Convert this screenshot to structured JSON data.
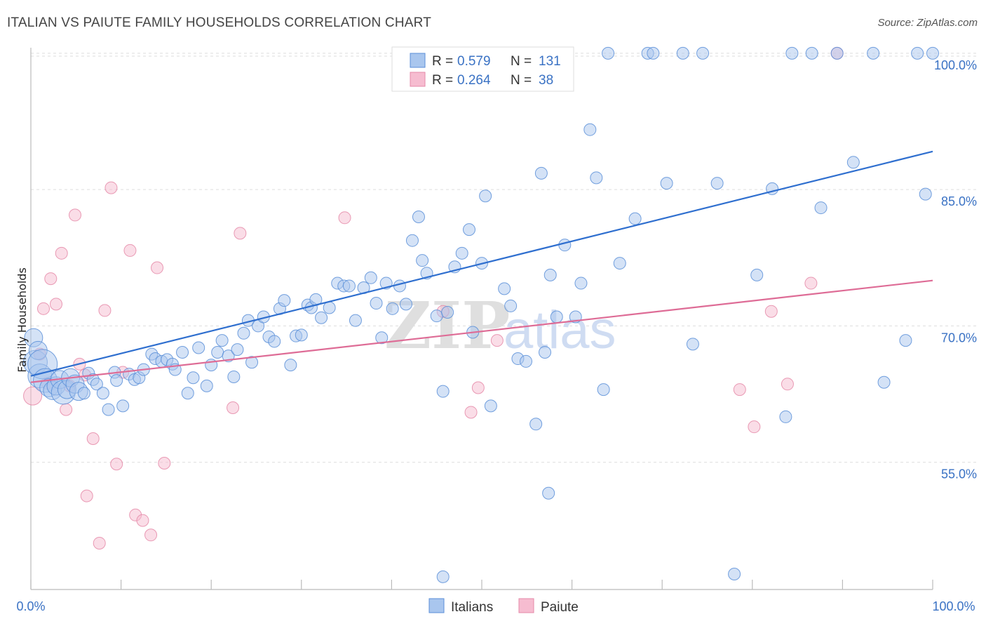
{
  "title": "ITALIAN VS PAIUTE FAMILY HOUSEHOLDS CORRELATION CHART",
  "source": "Source: ZipAtlas.com",
  "colors": {
    "blue_fill": "#a9c6ee",
    "blue_stroke": "#5b8fd8",
    "blue_line": "#2f6fcf",
    "pink_fill": "#f6bcd0",
    "pink_stroke": "#e58aa8",
    "pink_line": "#de6c96",
    "tick_text": "#3a72c4",
    "grid": "#dddddd"
  },
  "legend": {
    "r_label": "R =",
    "n_label": "N =",
    "rows": [
      {
        "r": "0.579",
        "n": "131"
      },
      {
        "r": "0.264",
        "n": "38"
      }
    ]
  },
  "watermark": {
    "zip": "ZIP",
    "atlas": "atlas"
  },
  "chart_data": {
    "type": "scatter",
    "title": "ITALIAN VS PAIUTE FAMILY HOUSEHOLDS CORRELATION CHART",
    "xlabel": "",
    "ylabel": "Family Households",
    "xlim": [
      0,
      100
    ],
    "ylim": [
      41,
      102
    ],
    "x_tick_labels": [
      "0.0%",
      "100.0%"
    ],
    "y_ticks": [
      {
        "value": 100,
        "label": "100.0%"
      },
      {
        "value": 85,
        "label": "85.0%"
      },
      {
        "value": 70,
        "label": "70.0%"
      },
      {
        "value": 55,
        "label": "55.0%"
      }
    ],
    "grid": true,
    "legend_position": "top-center",
    "series": [
      {
        "name": "Italians",
        "r": 0.579,
        "n": 131,
        "trend": {
          "x": [
            0,
            100
          ],
          "y": [
            64.5,
            89.2
          ]
        },
        "points": [
          [
            0.3,
            68.7,
            2
          ],
          [
            0.5,
            66.0,
            3
          ],
          [
            0.8,
            67.3,
            2
          ],
          [
            1.0,
            64.5,
            3
          ],
          [
            1.3,
            65.8,
            4
          ],
          [
            1.6,
            64.0,
            3
          ],
          [
            2.0,
            63.2,
            2
          ],
          [
            2.4,
            62.9,
            2
          ],
          [
            2.8,
            63.4,
            2
          ],
          [
            3.2,
            64.1,
            2
          ],
          [
            3.6,
            62.7,
            3
          ],
          [
            4.0,
            63.0,
            2
          ],
          [
            4.4,
            64.3,
            2
          ],
          [
            4.9,
            63.6,
            2
          ],
          [
            5.3,
            62.8,
            2
          ],
          [
            5.9,
            62.6,
            1
          ],
          [
            6.4,
            64.8,
            1
          ],
          [
            6.9,
            64.1,
            1
          ],
          [
            7.3,
            63.6,
            1
          ],
          [
            8.0,
            62.6,
            1
          ],
          [
            8.6,
            60.8,
            1
          ],
          [
            9.3,
            64.9,
            1
          ],
          [
            9.5,
            64.0,
            1
          ],
          [
            10.2,
            61.2,
            1
          ],
          [
            10.9,
            64.7,
            1
          ],
          [
            11.5,
            64.1,
            1
          ],
          [
            12.0,
            64.3,
            1
          ],
          [
            12.5,
            65.2,
            1
          ],
          [
            13.4,
            66.9,
            1
          ],
          [
            13.8,
            66.4,
            1
          ],
          [
            14.5,
            66.1,
            1
          ],
          [
            15.1,
            66.3,
            1
          ],
          [
            15.7,
            65.8,
            1
          ],
          [
            16.0,
            65.2,
            1
          ],
          [
            16.8,
            67.1,
            1
          ],
          [
            17.4,
            62.6,
            1
          ],
          [
            18.0,
            64.3,
            1
          ],
          [
            18.6,
            67.6,
            1
          ],
          [
            19.5,
            63.4,
            1
          ],
          [
            20.0,
            65.7,
            1
          ],
          [
            20.7,
            67.1,
            1
          ],
          [
            21.2,
            68.4,
            1
          ],
          [
            21.9,
            66.7,
            1
          ],
          [
            22.5,
            64.4,
            1
          ],
          [
            22.9,
            67.4,
            1
          ],
          [
            23.6,
            69.2,
            1
          ],
          [
            24.1,
            70.6,
            1
          ],
          [
            24.5,
            66.0,
            1
          ],
          [
            25.2,
            70.0,
            1
          ],
          [
            25.8,
            71.0,
            1
          ],
          [
            26.4,
            68.8,
            1
          ],
          [
            27.0,
            68.3,
            1
          ],
          [
            27.6,
            71.9,
            1
          ],
          [
            28.1,
            72.8,
            1
          ],
          [
            28.8,
            65.7,
            1
          ],
          [
            29.4,
            68.9,
            1
          ],
          [
            30.0,
            69.0,
            1
          ],
          [
            30.7,
            72.3,
            1
          ],
          [
            31.1,
            72.0,
            1
          ],
          [
            31.6,
            72.9,
            1
          ],
          [
            32.2,
            70.9,
            1
          ],
          [
            33.1,
            72.0,
            1
          ],
          [
            34.0,
            74.7,
            1
          ],
          [
            34.7,
            74.4,
            1
          ],
          [
            35.3,
            74.4,
            1
          ],
          [
            36.0,
            70.6,
            1
          ],
          [
            36.9,
            74.2,
            1
          ],
          [
            37.7,
            75.3,
            1
          ],
          [
            38.3,
            72.5,
            1
          ],
          [
            38.9,
            68.7,
            1
          ],
          [
            39.4,
            74.7,
            1
          ],
          [
            40.1,
            71.9,
            1
          ],
          [
            40.9,
            74.4,
            1
          ],
          [
            41.6,
            72.4,
            1
          ],
          [
            42.3,
            79.4,
            1
          ],
          [
            43.0,
            82.0,
            1
          ],
          [
            43.4,
            77.2,
            1
          ],
          [
            43.9,
            75.8,
            1
          ],
          [
            45.0,
            71.1,
            1
          ],
          [
            45.7,
            62.8,
            1
          ],
          [
            46.2,
            71.5,
            1
          ],
          [
            47.0,
            76.5,
            1
          ],
          [
            47.8,
            78.0,
            1
          ],
          [
            48.6,
            80.6,
            1
          ],
          [
            49.0,
            69.3,
            1
          ],
          [
            50.0,
            76.9,
            1
          ],
          [
            50.4,
            84.3,
            1
          ],
          [
            51.0,
            61.2,
            1
          ],
          [
            52.5,
            74.1,
            1
          ],
          [
            53.2,
            72.2,
            1
          ],
          [
            54.0,
            66.4,
            1
          ],
          [
            54.9,
            66.1,
            1
          ],
          [
            56.0,
            59.2,
            1
          ],
          [
            56.6,
            86.8,
            1
          ],
          [
            57.0,
            67.1,
            1
          ],
          [
            57.6,
            75.6,
            1
          ],
          [
            58.3,
            71.0,
            1
          ],
          [
            59.2,
            78.9,
            1
          ],
          [
            60.4,
            71.0,
            1
          ],
          [
            61.0,
            74.7,
            1
          ],
          [
            62.0,
            91.6,
            1
          ],
          [
            62.7,
            86.3,
            1
          ],
          [
            63.5,
            63.0,
            1
          ],
          [
            64.0,
            100.0,
            1
          ],
          [
            65.3,
            76.9,
            1
          ],
          [
            67.0,
            81.8,
            1
          ],
          [
            68.4,
            100.0,
            1
          ],
          [
            69.0,
            100.0,
            1
          ],
          [
            70.5,
            85.7,
            1
          ],
          [
            72.3,
            100.0,
            1
          ],
          [
            73.4,
            68.0,
            1
          ],
          [
            74.5,
            100.0,
            1
          ],
          [
            76.1,
            85.7,
            1
          ],
          [
            78.0,
            42.7,
            1
          ],
          [
            80.5,
            75.6,
            1
          ],
          [
            82.2,
            85.1,
            1
          ],
          [
            83.7,
            60.0,
            1
          ],
          [
            84.4,
            100.0,
            1
          ],
          [
            86.6,
            100.0,
            1
          ],
          [
            87.6,
            83.0,
            1
          ],
          [
            89.4,
            100.0,
            1
          ],
          [
            91.2,
            88.0,
            1
          ],
          [
            93.4,
            100.0,
            1
          ],
          [
            94.6,
            63.8,
            1
          ],
          [
            97.0,
            68.4,
            1
          ],
          [
            98.3,
            100.0,
            1
          ],
          [
            99.2,
            84.5,
            1
          ],
          [
            100.0,
            100.0,
            1
          ],
          [
            57.4,
            51.6,
            1
          ],
          [
            45.7,
            42.4,
            1
          ],
          [
            47.6,
            100.0,
            1
          ]
        ]
      },
      {
        "name": "Paiute",
        "r": 0.264,
        "n": 38,
        "trend": {
          "x": [
            0,
            100
          ],
          "y": [
            63.8,
            75.0
          ]
        },
        "points": [
          [
            0.2,
            62.3,
            2
          ],
          [
            1.0,
            66.9,
            1
          ],
          [
            1.4,
            71.9,
            1
          ],
          [
            1.8,
            63.7,
            1
          ],
          [
            2.2,
            75.2,
            1
          ],
          [
            2.8,
            72.4,
            1
          ],
          [
            3.4,
            78.0,
            1
          ],
          [
            3.9,
            60.8,
            1
          ],
          [
            4.3,
            63.4,
            1
          ],
          [
            4.9,
            82.2,
            1
          ],
          [
            5.4,
            65.8,
            1
          ],
          [
            6.0,
            64.6,
            1
          ],
          [
            6.2,
            51.3,
            1
          ],
          [
            6.9,
            57.6,
            1
          ],
          [
            7.6,
            46.1,
            1
          ],
          [
            8.2,
            71.7,
            1
          ],
          [
            8.9,
            85.2,
            1
          ],
          [
            9.5,
            54.8,
            1
          ],
          [
            10.2,
            64.9,
            1
          ],
          [
            11.0,
            78.3,
            1
          ],
          [
            11.6,
            49.2,
            1
          ],
          [
            12.4,
            48.6,
            1
          ],
          [
            13.3,
            47.0,
            1
          ],
          [
            14.0,
            76.4,
            1
          ],
          [
            14.8,
            54.9,
            1
          ],
          [
            22.4,
            61.0,
            1
          ],
          [
            23.2,
            80.2,
            1
          ],
          [
            34.8,
            81.9,
            1
          ],
          [
            45.7,
            71.6,
            1
          ],
          [
            48.8,
            60.5,
            1
          ],
          [
            49.6,
            63.2,
            1
          ],
          [
            51.7,
            68.4,
            1
          ],
          [
            78.6,
            63.0,
            1
          ],
          [
            80.2,
            58.9,
            1
          ],
          [
            82.1,
            71.6,
            1
          ],
          [
            83.9,
            63.6,
            1
          ],
          [
            86.5,
            74.7,
            1
          ],
          [
            89.4,
            100.0,
            1
          ]
        ]
      }
    ]
  }
}
